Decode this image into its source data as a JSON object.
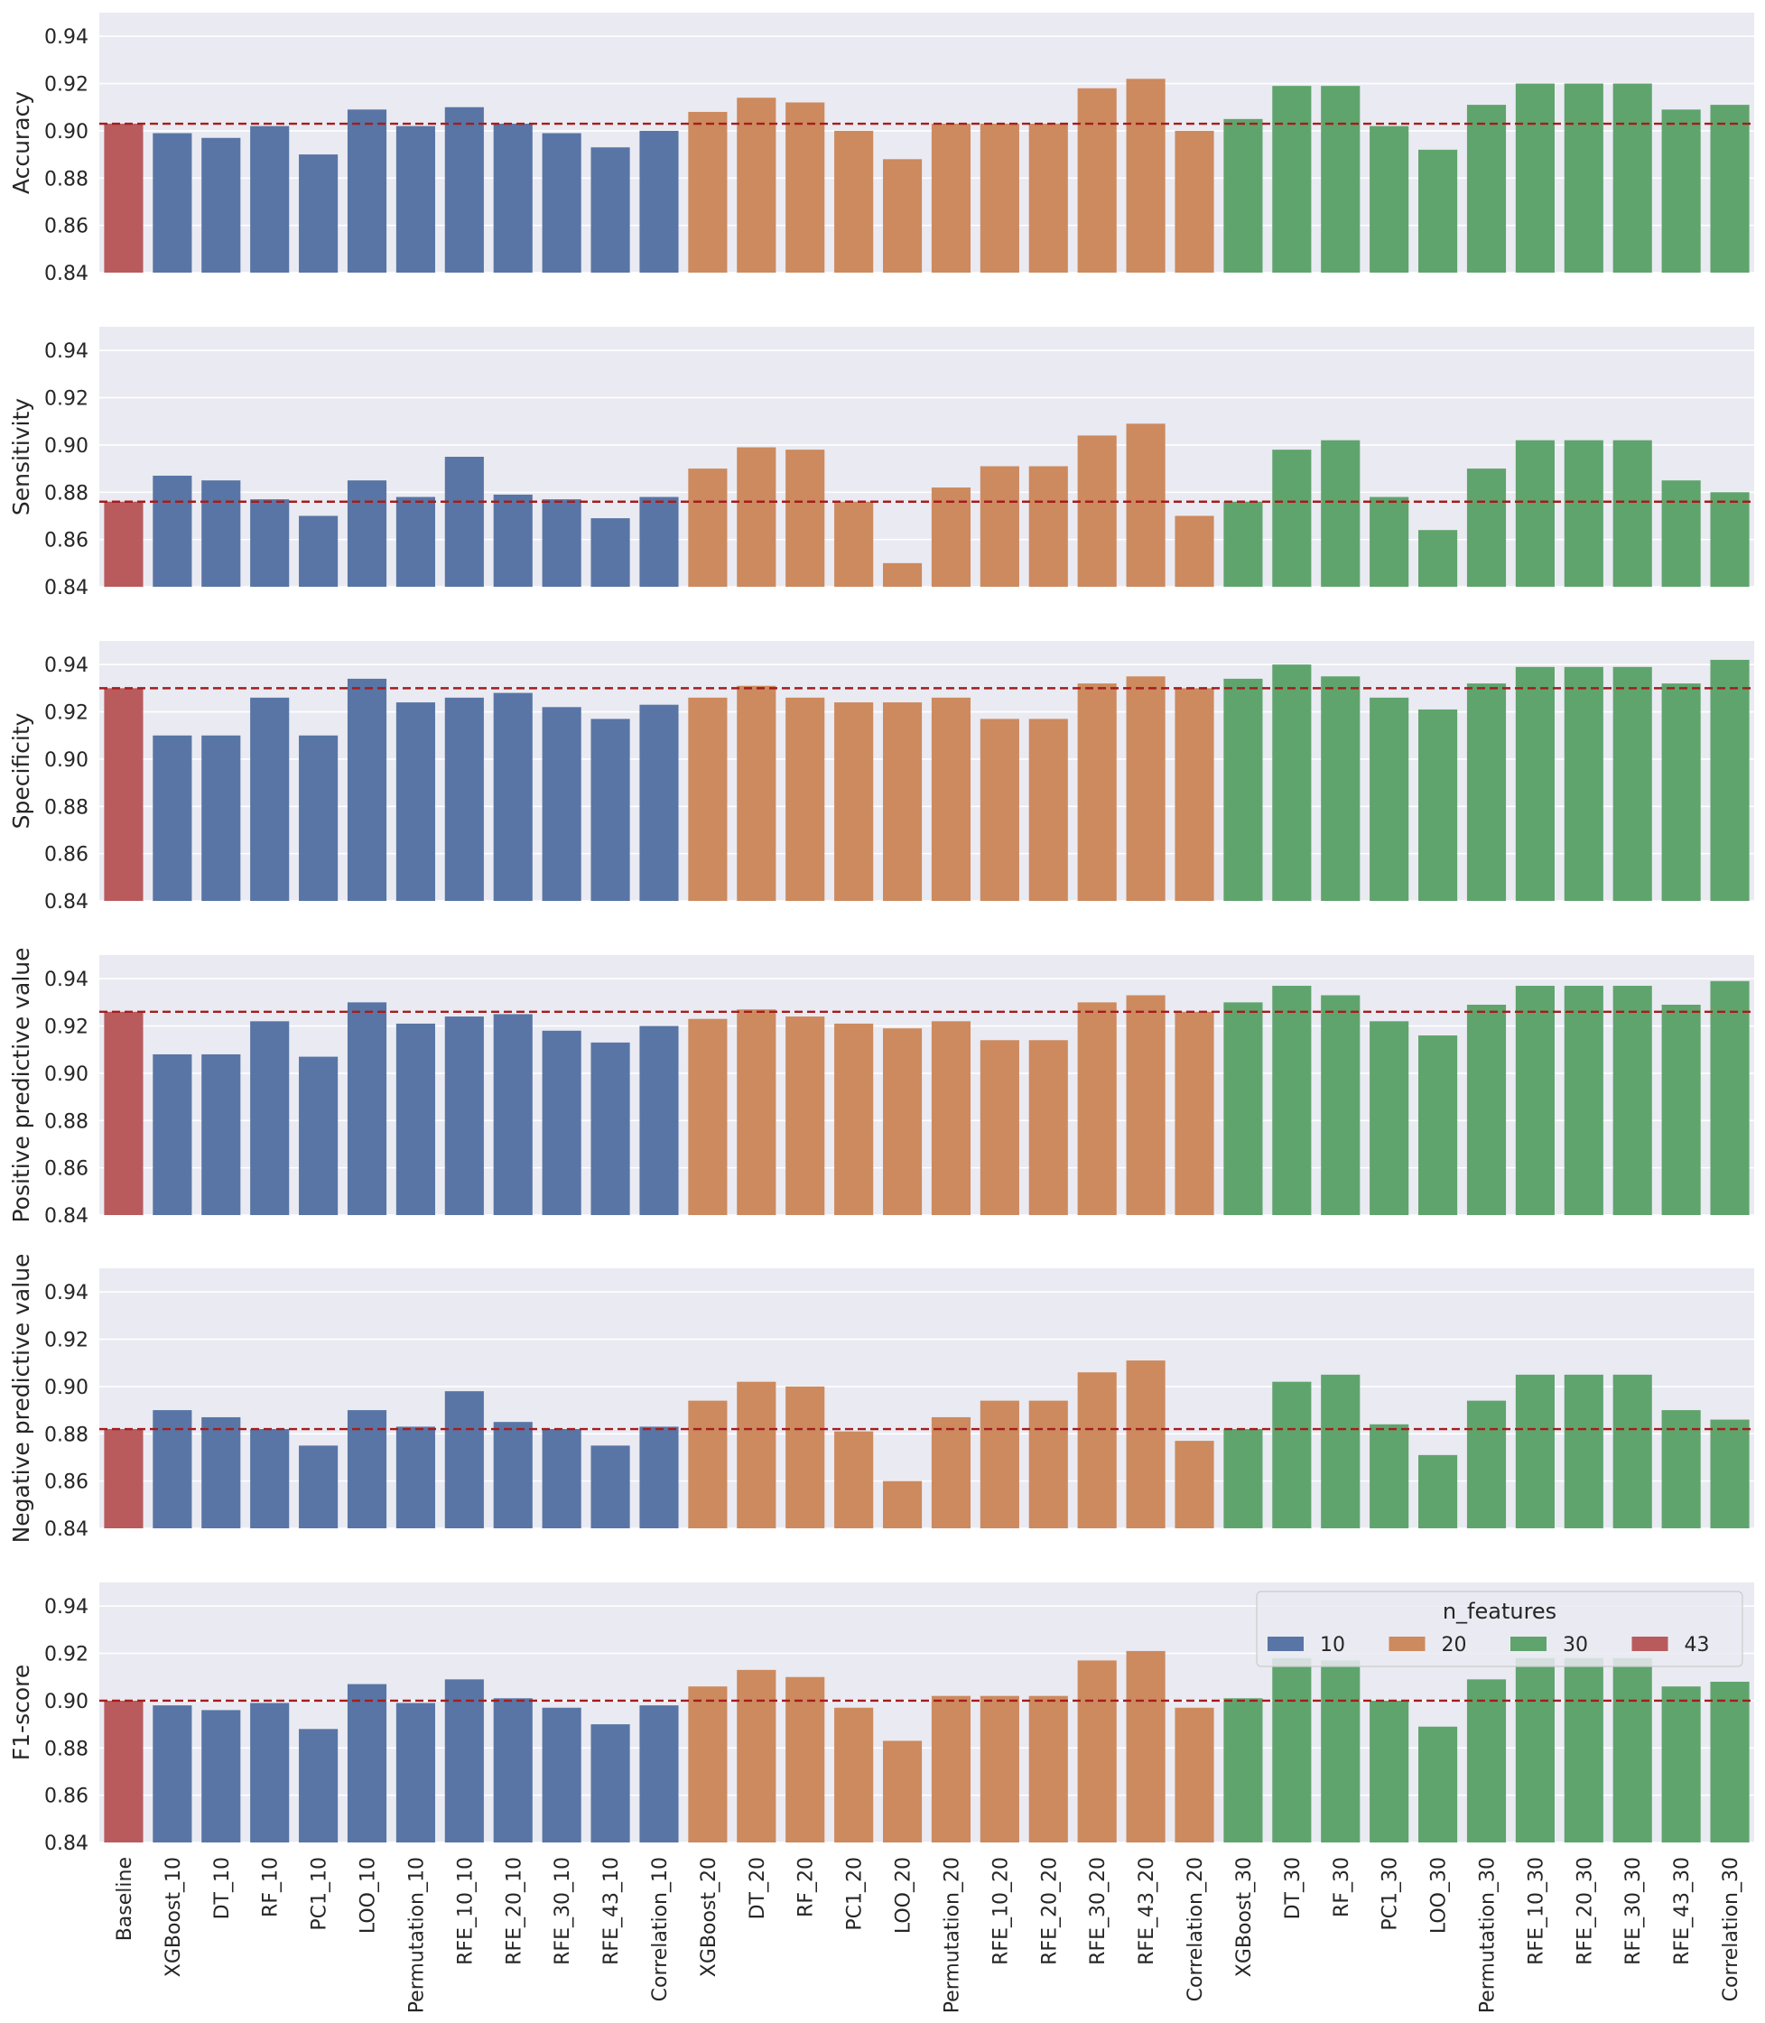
{
  "chart_data": {
    "type": "bar",
    "categories": [
      "Baseline",
      "XGBoost_10",
      "DT_10",
      "RF_10",
      "PC1_10",
      "LOO_10",
      "Permutation_10",
      "RFE_10_10",
      "RFE_20_10",
      "RFE_30_10",
      "RFE_43_10",
      "Correlation_10",
      "XGBoost_20",
      "DT_20",
      "RF_20",
      "PC1_20",
      "LOO_20",
      "Permutation_20",
      "RFE_10_20",
      "RFE_20_20",
      "RFE_30_20",
      "RFE_43_20",
      "Correlation_20",
      "XGBoost_30",
      "DT_30",
      "RF_30",
      "PC1_30",
      "LOO_30",
      "Permutation_30",
      "RFE_10_30",
      "RFE_20_30",
      "RFE_30_30",
      "RFE_43_30",
      "Correlation_30"
    ],
    "hue": [
      43,
      10,
      10,
      10,
      10,
      10,
      10,
      10,
      10,
      10,
      10,
      10,
      20,
      20,
      20,
      20,
      20,
      20,
      20,
      20,
      20,
      20,
      20,
      30,
      30,
      30,
      30,
      30,
      30,
      30,
      30,
      30,
      30,
      30
    ],
    "ylim": [
      0.84,
      0.95
    ],
    "yticks": [
      "0.84",
      "0.86",
      "0.88",
      "0.90",
      "0.92",
      "0.94"
    ],
    "grid": true,
    "subplots": [
      {
        "ylabel": "Accuracy",
        "baseline": 0.903,
        "values": [
          0.903,
          0.899,
          0.897,
          0.902,
          0.89,
          0.909,
          0.902,
          0.91,
          0.903,
          0.899,
          0.893,
          0.9,
          0.908,
          0.914,
          0.912,
          0.9,
          0.888,
          0.903,
          0.903,
          0.903,
          0.918,
          0.922,
          0.9,
          0.905,
          0.919,
          0.919,
          0.902,
          0.892,
          0.911,
          0.92,
          0.92,
          0.92,
          0.909,
          0.911
        ]
      },
      {
        "ylabel": "Sensitivity",
        "baseline": 0.876,
        "values": [
          0.876,
          0.887,
          0.885,
          0.877,
          0.87,
          0.885,
          0.878,
          0.895,
          0.879,
          0.877,
          0.869,
          0.878,
          0.89,
          0.899,
          0.898,
          0.876,
          0.85,
          0.882,
          0.891,
          0.891,
          0.904,
          0.909,
          0.87,
          0.876,
          0.898,
          0.902,
          0.878,
          0.864,
          0.89,
          0.902,
          0.902,
          0.902,
          0.885,
          0.88
        ]
      },
      {
        "ylabel": "Specificity",
        "baseline": 0.93,
        "values": [
          0.93,
          0.91,
          0.91,
          0.926,
          0.91,
          0.934,
          0.924,
          0.926,
          0.928,
          0.922,
          0.917,
          0.923,
          0.926,
          0.931,
          0.926,
          0.924,
          0.924,
          0.926,
          0.917,
          0.917,
          0.932,
          0.935,
          0.93,
          0.934,
          0.94,
          0.935,
          0.926,
          0.921,
          0.932,
          0.939,
          0.939,
          0.939,
          0.932,
          0.942
        ]
      },
      {
        "ylabel": "Positive predictive value",
        "baseline": 0.926,
        "values": [
          0.926,
          0.908,
          0.908,
          0.922,
          0.907,
          0.93,
          0.921,
          0.924,
          0.925,
          0.918,
          0.913,
          0.92,
          0.923,
          0.927,
          0.924,
          0.921,
          0.919,
          0.922,
          0.914,
          0.914,
          0.93,
          0.933,
          0.926,
          0.93,
          0.937,
          0.933,
          0.922,
          0.916,
          0.929,
          0.937,
          0.937,
          0.937,
          0.929,
          0.939
        ]
      },
      {
        "ylabel": "Negative predictive value",
        "baseline": 0.882,
        "values": [
          0.882,
          0.89,
          0.887,
          0.882,
          0.875,
          0.89,
          0.883,
          0.898,
          0.885,
          0.882,
          0.875,
          0.883,
          0.894,
          0.902,
          0.9,
          0.881,
          0.86,
          0.887,
          0.894,
          0.894,
          0.906,
          0.911,
          0.877,
          0.882,
          0.902,
          0.905,
          0.884,
          0.871,
          0.894,
          0.905,
          0.905,
          0.905,
          0.89,
          0.886
        ]
      },
      {
        "ylabel": "F1-score",
        "baseline": 0.9,
        "values": [
          0.9,
          0.898,
          0.896,
          0.899,
          0.888,
          0.907,
          0.899,
          0.909,
          0.901,
          0.897,
          0.89,
          0.898,
          0.906,
          0.913,
          0.91,
          0.897,
          0.883,
          0.902,
          0.902,
          0.902,
          0.917,
          0.921,
          0.897,
          0.901,
          0.918,
          0.917,
          0.9,
          0.889,
          0.909,
          0.918,
          0.918,
          0.918,
          0.906,
          0.908
        ]
      }
    ],
    "legend": {
      "title": "n_features",
      "entries": [
        {
          "label": "10",
          "hue": 10
        },
        {
          "label": "20",
          "hue": 20
        },
        {
          "label": "30",
          "hue": 30
        },
        {
          "label": "43",
          "hue": 43
        }
      ],
      "placement": "top-right of last subplot"
    }
  },
  "colors": {
    "hue_10": "#5875a5",
    "hue_20": "#cc8a5e",
    "hue_30": "#5fa46d",
    "hue_43": "#b95a5d",
    "baseline_line": "#a61c1c",
    "panel_bg": "#eaeaf2",
    "grid": "#ffffff"
  }
}
